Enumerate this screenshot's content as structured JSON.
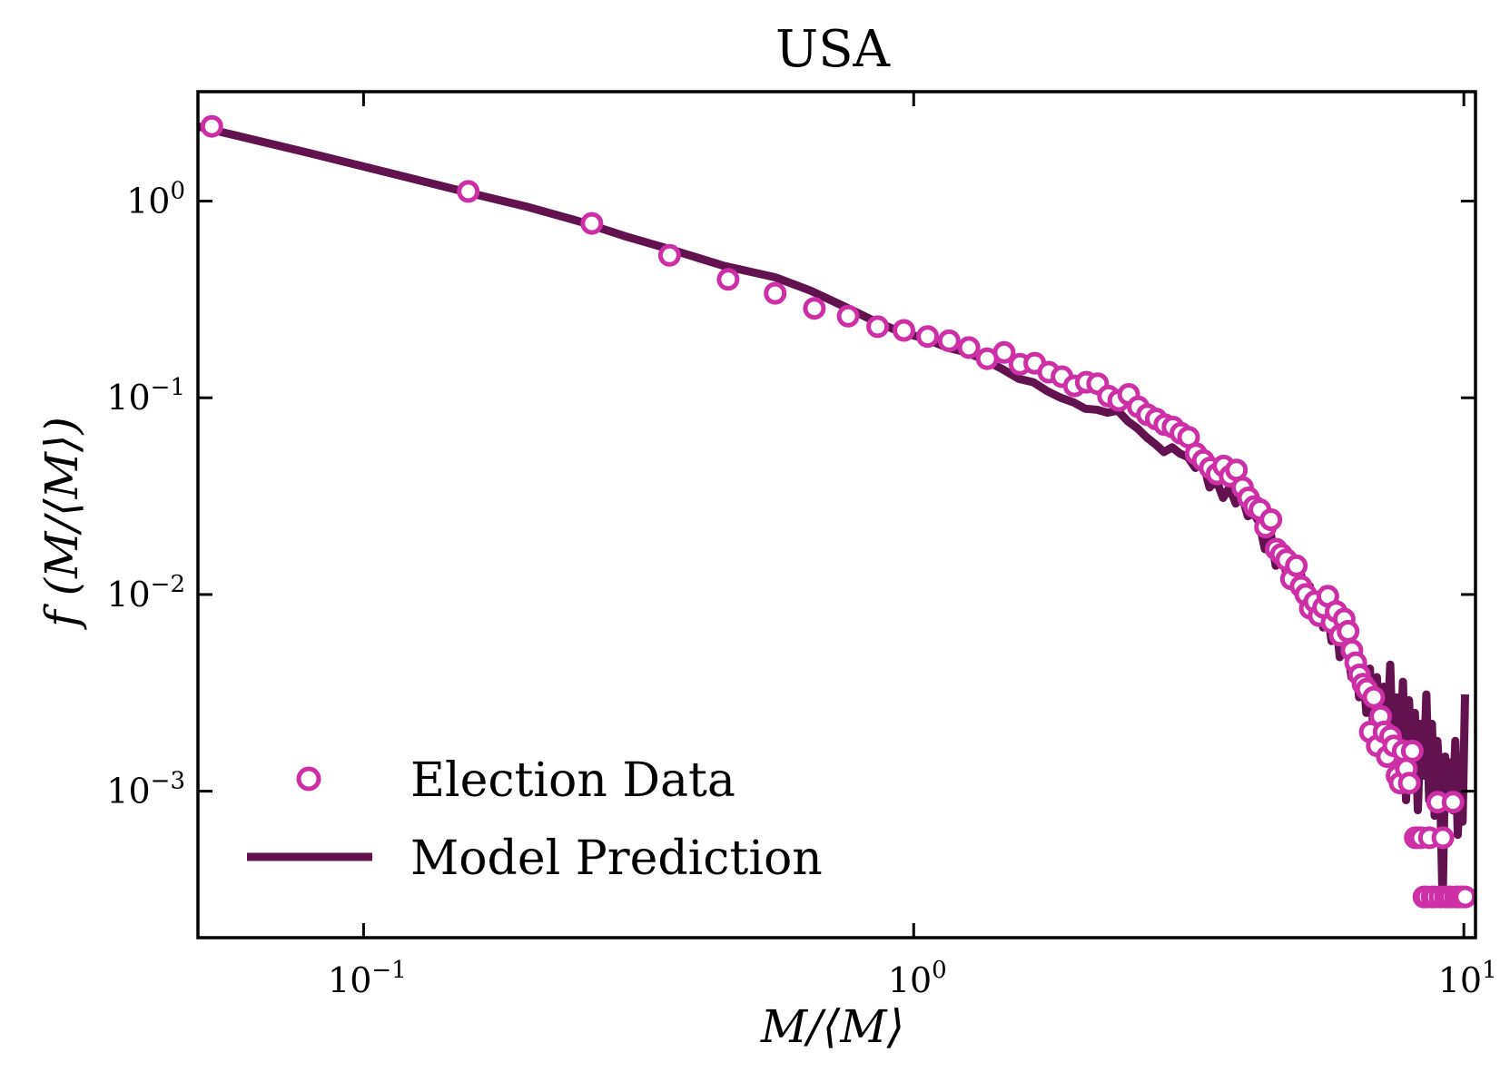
{
  "chart_data": {
    "type": "scatter",
    "title": "USA",
    "xlabel": "M/⟨M⟩",
    "ylabel": "f (M/⟨M⟩)",
    "xscale": "log",
    "yscale": "log",
    "xlim": [
      0.05,
      10.5
    ],
    "ylim": [
      0.00018,
      3.6
    ],
    "grid": false,
    "legend_position": "lower-left",
    "x_ticks": [
      {
        "value": 0.1,
        "base": "10",
        "exp": "−1"
      },
      {
        "value": 1,
        "base": "10",
        "exp": "0"
      },
      {
        "value": 10,
        "base": "10",
        "exp": "1"
      }
    ],
    "y_ticks": [
      {
        "value": 1,
        "base": "10",
        "exp": "0"
      },
      {
        "value": 0.1,
        "base": "10",
        "exp": "−1"
      },
      {
        "value": 0.01,
        "base": "10",
        "exp": "−2"
      },
      {
        "value": 0.001,
        "base": "10",
        "exp": "−3"
      }
    ],
    "colors": {
      "election": "#cc2fa6",
      "model": "#631250",
      "axis": "#000000"
    },
    "series": [
      {
        "name": "Election Data",
        "kind": "markers",
        "x": [
          0.053,
          0.155,
          0.26,
          0.36,
          0.46,
          0.56,
          0.66,
          0.76,
          0.86,
          0.96,
          1.06,
          1.16,
          1.26,
          1.36,
          1.46,
          1.56,
          1.66,
          1.76,
          1.86,
          1.96,
          2.06,
          2.16,
          2.26,
          2.36,
          2.46,
          2.56,
          2.66,
          2.76,
          2.86,
          2.96,
          3.06,
          3.16,
          3.26,
          3.36,
          3.46,
          3.56,
          3.66,
          3.76,
          3.86,
          3.96,
          4.06,
          4.16,
          4.26,
          4.36,
          4.46,
          4.56,
          4.66,
          4.76,
          4.86,
          4.96,
          5.06,
          5.16,
          5.26,
          5.36,
          5.46,
          5.56,
          5.66,
          5.76,
          5.86,
          5.96,
          6.06,
          6.16,
          6.26,
          6.36,
          6.46,
          6.56,
          6.66,
          6.76,
          6.86,
          6.96,
          7.06,
          7.16,
          7.26,
          7.36,
          7.46,
          7.56,
          7.66,
          7.76,
          7.86,
          7.96,
          8.06,
          8.16,
          8.26,
          8.36,
          8.46,
          8.56,
          8.66,
          8.76,
          8.86,
          8.96,
          9.06,
          9.16,
          9.26,
          9.36,
          9.46,
          9.56,
          9.66,
          9.76,
          9.86,
          9.96,
          10.06
        ],
        "y": [
          2.4,
          1.12,
          0.77,
          0.53,
          0.4,
          0.34,
          0.285,
          0.26,
          0.23,
          0.22,
          0.205,
          0.195,
          0.18,
          0.158,
          0.17,
          0.148,
          0.15,
          0.135,
          0.128,
          0.115,
          0.12,
          0.118,
          0.102,
          0.097,
          0.104,
          0.09,
          0.082,
          0.078,
          0.073,
          0.071,
          0.066,
          0.063,
          0.052,
          0.048,
          0.044,
          0.041,
          0.045,
          0.04,
          0.043,
          0.035,
          0.031,
          0.028,
          0.027,
          0.022,
          0.024,
          0.017,
          0.016,
          0.015,
          0.012,
          0.014,
          0.011,
          0.01,
          0.0085,
          0.0092,
          0.0078,
          0.0086,
          0.0098,
          0.0072,
          0.0082,
          0.0062,
          0.0075,
          0.0065,
          0.0052,
          0.0045,
          0.0039,
          0.0035,
          0.0033,
          0.002,
          0.003,
          0.0017,
          0.0024,
          0.002,
          0.0015,
          0.0019,
          0.0017,
          0.0012,
          0.0011,
          0.0016,
          0.0013,
          0.0011,
          0.0016,
          0.00058,
          0.00058,
          0.00058,
          0.00029,
          0.00029,
          0.00058,
          0.00029,
          0.00029,
          0.00088,
          0.00029,
          0.00058,
          0.00029,
          0.00029,
          0.00029,
          0.00088,
          0.00029,
          0.00029,
          0.00029,
          0.00029,
          0.00029
        ]
      },
      {
        "name": "Model Prediction",
        "kind": "line",
        "x": [
          0.05,
          0.08,
          0.12,
          0.16,
          0.2,
          0.25,
          0.3,
          0.36,
          0.45,
          0.56,
          0.65,
          0.75,
          0.85,
          0.95,
          1.05,
          1.15,
          1.25,
          1.35,
          1.45,
          1.55,
          1.65,
          1.75,
          1.85,
          1.95,
          2.05,
          2.15,
          2.25,
          2.35,
          2.45,
          2.55,
          2.65,
          2.75,
          2.85,
          2.95,
          3.05,
          3.15,
          3.25,
          3.35,
          3.45,
          3.55,
          3.65,
          3.75,
          3.85,
          3.95,
          4.05,
          4.15,
          4.25,
          4.35,
          4.45,
          4.55,
          4.65,
          4.75,
          4.85,
          4.95,
          5.05,
          5.15,
          5.25,
          5.35,
          5.45,
          5.55,
          5.65,
          5.75,
          5.85,
          5.95,
          6.05,
          6.15,
          6.25,
          6.35,
          6.45,
          6.55,
          6.65,
          6.75,
          6.85,
          6.95,
          7.05,
          7.15,
          7.25,
          7.35,
          7.45,
          7.55,
          7.65,
          7.75,
          7.85,
          7.95,
          8.05,
          8.15,
          8.25,
          8.35,
          8.45,
          8.55,
          8.65,
          8.75,
          8.85,
          8.95,
          9.05,
          9.15,
          9.25,
          9.35,
          9.45,
          9.55,
          9.65,
          9.75,
          9.85,
          9.95,
          10.05
        ],
        "y": [
          2.4,
          1.75,
          1.32,
          1.08,
          0.93,
          0.78,
          0.66,
          0.57,
          0.47,
          0.41,
          0.35,
          0.29,
          0.245,
          0.215,
          0.2,
          0.18,
          0.17,
          0.155,
          0.14,
          0.125,
          0.12,
          0.108,
          0.1,
          0.095,
          0.088,
          0.087,
          0.084,
          0.086,
          0.076,
          0.07,
          0.063,
          0.058,
          0.053,
          0.056,
          0.052,
          0.05,
          0.044,
          0.048,
          0.035,
          0.038,
          0.031,
          0.035,
          0.029,
          0.032,
          0.025,
          0.026,
          0.023,
          0.017,
          0.021,
          0.014,
          0.017,
          0.013,
          0.015,
          0.011,
          0.013,
          0.0095,
          0.011,
          0.0085,
          0.0095,
          0.0068,
          0.0083,
          0.0058,
          0.0078,
          0.0048,
          0.0068,
          0.0052,
          0.0038,
          0.0052,
          0.003,
          0.0045,
          0.0025,
          0.0042,
          0.002,
          0.0038,
          0.0015,
          0.0034,
          0.0018,
          0.0044,
          0.0012,
          0.003,
          0.0015,
          0.0036,
          0.0009,
          0.0029,
          0.0013,
          0.0025,
          0.0008,
          0.0022,
          0.0012,
          0.0031,
          0.0009,
          0.0022,
          0.00075,
          0.0018,
          0.0011,
          0.00027,
          0.0015,
          0.0009,
          0.0014,
          0.0008,
          0.0018,
          0.0006,
          0.0013,
          0.0007,
          0.0031
        ]
      }
    ]
  }
}
